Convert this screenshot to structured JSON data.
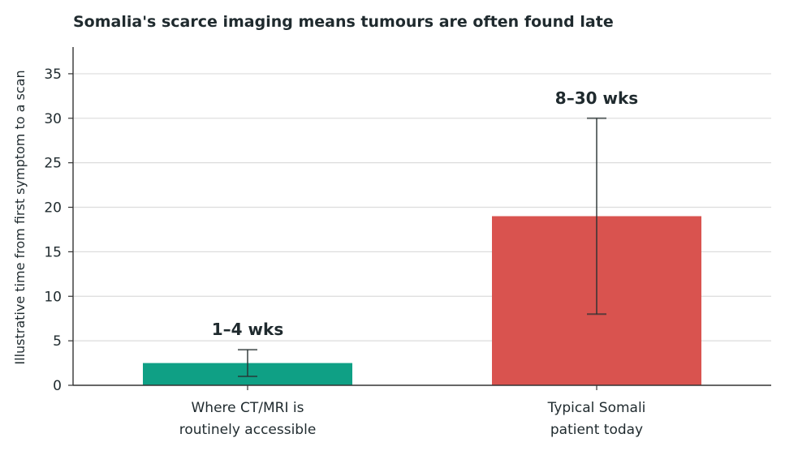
{
  "chart_data": {
    "type": "bar",
    "title": "Somalia's scarce imaging means tumours are often found late",
    "xlabel": "",
    "ylabel": "Illustrative time from first symptom to a scan",
    "ylim": [
      0,
      38
    ],
    "yticks": [
      0,
      5,
      10,
      15,
      20,
      25,
      30,
      35
    ],
    "grid": true,
    "categories": [
      [
        "Where CT/MRI is",
        "routinely accessible"
      ],
      [
        "Typical Somali",
        "patient today"
      ]
    ],
    "values": [
      2.5,
      19
    ],
    "error_low": [
      1,
      8
    ],
    "error_high": [
      4,
      30
    ],
    "data_labels": [
      "1–4 wks",
      "8–30 wks"
    ],
    "colors": [
      "#0fa085",
      "#d9534f"
    ]
  }
}
